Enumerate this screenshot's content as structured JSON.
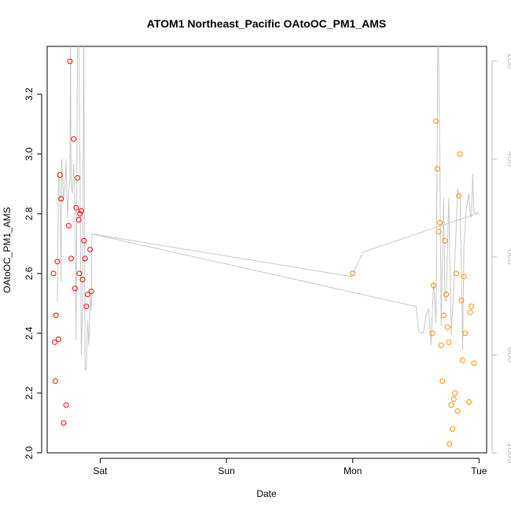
{
  "chart_data": {
    "type": "scatter",
    "title": "ATOM1 Northeast_Pacific OAtoOC_PM1_AMS",
    "xlabel": "Date",
    "ylabel": "OAtoOC_PM1_AMS",
    "x_unit": "days since start of Saturday",
    "xlim": [
      -0.42,
      3.06
    ],
    "ylim": [
      2.0,
      3.36
    ],
    "y2lim": [
      1000,
      170
    ],
    "x_ticks": [
      {
        "value": 0,
        "label": "Sat"
      },
      {
        "value": 1,
        "label": "Sun"
      },
      {
        "value": 2,
        "label": "Mon"
      },
      {
        "value": 3,
        "label": "Tue"
      }
    ],
    "y_ticks": [
      {
        "value": 2.0,
        "label": "2.0"
      },
      {
        "value": 2.2,
        "label": "2.2"
      },
      {
        "value": 2.4,
        "label": "2.4"
      },
      {
        "value": 2.6,
        "label": "2.6"
      },
      {
        "value": 2.8,
        "label": "2.8"
      },
      {
        "value": 3.0,
        "label": "3.0"
      },
      {
        "value": 3.2,
        "label": "3.2"
      }
    ],
    "y2_ticks": [
      {
        "value": 200,
        "label": "200"
      },
      {
        "value": 400,
        "label": "400"
      },
      {
        "value": 600,
        "label": "600"
      },
      {
        "value": 800,
        "label": "800"
      },
      {
        "value": 1000,
        "label": "1000"
      }
    ],
    "grid": false,
    "colors": {
      "series_red": "#ff0000",
      "series_orange": "#ff8c00",
      "altitude_line": "#c8c8c8",
      "right_axis": "#bbbbbb"
    },
    "series": [
      {
        "color": "#ff0000",
        "marker": "open-circle",
        "points": [
          [
            -0.37,
            2.6
          ],
          [
            -0.36,
            2.37
          ],
          [
            -0.355,
            2.24
          ],
          [
            -0.35,
            2.46
          ],
          [
            -0.34,
            2.64
          ],
          [
            -0.33,
            2.38
          ],
          [
            -0.32,
            2.93
          ],
          [
            -0.31,
            2.85
          ],
          [
            -0.29,
            2.1
          ],
          [
            -0.27,
            2.16
          ],
          [
            -0.25,
            2.76
          ],
          [
            -0.24,
            3.31
          ],
          [
            -0.23,
            2.65
          ],
          [
            -0.21,
            3.05
          ],
          [
            -0.2,
            2.55
          ],
          [
            -0.19,
            2.82
          ],
          [
            -0.18,
            2.92
          ],
          [
            -0.17,
            2.78
          ],
          [
            -0.165,
            2.6
          ],
          [
            -0.16,
            2.8
          ],
          [
            -0.15,
            2.81
          ],
          [
            -0.14,
            2.58
          ],
          [
            -0.13,
            2.71
          ],
          [
            -0.12,
            2.65
          ],
          [
            -0.11,
            2.49
          ],
          [
            -0.1,
            2.53
          ],
          [
            -0.08,
            2.68
          ],
          [
            -0.07,
            2.54
          ]
        ]
      },
      {
        "color": "#ff8c00",
        "marker": "open-circle",
        "points": [
          [
            2.0,
            2.6
          ],
          [
            2.63,
            2.4
          ],
          [
            2.64,
            2.56
          ],
          [
            2.66,
            3.11
          ],
          [
            2.67,
            2.95
          ],
          [
            2.68,
            2.74
          ],
          [
            2.69,
            2.77
          ],
          [
            2.7,
            2.36
          ],
          [
            2.71,
            2.24
          ],
          [
            2.72,
            2.46
          ],
          [
            2.73,
            2.71
          ],
          [
            2.74,
            2.53
          ],
          [
            2.75,
            2.42
          ],
          [
            2.76,
            2.37
          ],
          [
            2.765,
            2.03
          ],
          [
            2.78,
            2.16
          ],
          [
            2.79,
            2.08
          ],
          [
            2.8,
            2.18
          ],
          [
            2.81,
            2.2
          ],
          [
            2.82,
            2.6
          ],
          [
            2.83,
            2.14
          ],
          [
            2.84,
            2.86
          ],
          [
            2.85,
            3.0
          ],
          [
            2.86,
            2.51
          ],
          [
            2.87,
            2.31
          ],
          [
            2.88,
            2.59
          ],
          [
            2.89,
            2.4
          ],
          [
            2.92,
            2.17
          ],
          [
            2.93,
            2.47
          ],
          [
            2.94,
            2.49
          ],
          [
            2.96,
            2.3
          ]
        ]
      }
    ],
    "altitude_line": {
      "color": "#c8c8c8",
      "axis": "right",
      "points": [
        [
          -0.35,
          690
        ],
        [
          -0.34,
          690
        ],
        [
          -0.33,
          430
        ],
        [
          -0.32,
          455
        ],
        [
          -0.31,
          650
        ],
        [
          -0.305,
          400
        ],
        [
          -0.29,
          480
        ],
        [
          -0.28,
          460
        ],
        [
          -0.27,
          400
        ],
        [
          -0.26,
          520
        ],
        [
          -0.25,
          470
        ],
        [
          -0.24,
          440
        ],
        [
          -0.235,
          150
        ],
        [
          -0.23,
          455
        ],
        [
          -0.22,
          470
        ],
        [
          -0.21,
          410
        ],
        [
          -0.2,
          480
        ],
        [
          -0.19,
          770
        ],
        [
          -0.18,
          120
        ],
        [
          -0.17,
          150
        ],
        [
          -0.16,
          430
        ],
        [
          -0.15,
          800
        ],
        [
          -0.14,
          700
        ],
        [
          -0.13,
          150
        ],
        [
          -0.12,
          830
        ],
        [
          -0.11,
          830
        ],
        [
          -0.1,
          730
        ],
        [
          -0.09,
          780
        ],
        [
          -0.08,
          680
        ],
        [
          -0.07,
          710
        ],
        [
          -0.065,
          553
        ],
        [
          2.48,
          700
        ],
        [
          2.5,
          700
        ],
        [
          2.52,
          750
        ],
        [
          2.54,
          755
        ],
        [
          2.56,
          755
        ],
        [
          2.58,
          720
        ],
        [
          2.6,
          705
        ],
        [
          2.62,
          780
        ],
        [
          2.64,
          650
        ],
        [
          2.66,
          735
        ],
        [
          2.675,
          80
        ],
        [
          2.69,
          420
        ],
        [
          2.7,
          740
        ],
        [
          2.72,
          480
        ],
        [
          2.73,
          690
        ],
        [
          2.74,
          690
        ],
        [
          2.76,
          480
        ],
        [
          2.78,
          760
        ],
        [
          2.8,
          660
        ],
        [
          2.815,
          570
        ],
        [
          2.83,
          460
        ],
        [
          2.85,
          480
        ],
        [
          2.87,
          790
        ],
        [
          2.88,
          580
        ],
        [
          2.9,
          500
        ],
        [
          2.92,
          470
        ],
        [
          2.93,
          510
        ],
        [
          2.94,
          520
        ],
        [
          2.95,
          430
        ],
        [
          2.96,
          510
        ],
        [
          3.0,
          510
        ]
      ],
      "connector": [
        [
          -0.065,
          553
        ],
        [
          1.99,
          640
        ],
        [
          2.0,
          635
        ],
        [
          2.08,
          590
        ],
        [
          3.0,
          510
        ]
      ]
    }
  }
}
